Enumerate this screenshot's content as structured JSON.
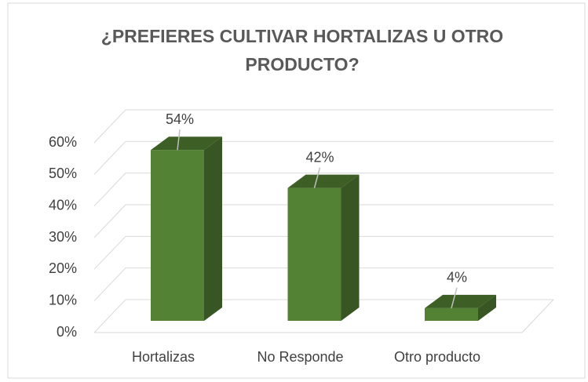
{
  "chart_data": {
    "type": "bar3d",
    "title": [
      "¿PREFIERES CULTIVAR HORTALIZAS U OTRO",
      "PRODUCTO?"
    ],
    "categories": [
      "Hortalizas",
      "No Responde",
      "Otro producto"
    ],
    "values": [
      54,
      42,
      4
    ],
    "value_labels": [
      "54%",
      "42%",
      "4%"
    ],
    "color": "#548235",
    "ylim": [
      0,
      60
    ],
    "yticks": [
      {
        "value": 0,
        "label": "0%"
      },
      {
        "value": 10,
        "label": "10%"
      },
      {
        "value": 20,
        "label": "20%"
      },
      {
        "value": 30,
        "label": "30%"
      },
      {
        "value": 40,
        "label": "40%"
      },
      {
        "value": 50,
        "label": "50%"
      },
      {
        "value": 60,
        "label": "60%"
      }
    ],
    "grid": true
  }
}
